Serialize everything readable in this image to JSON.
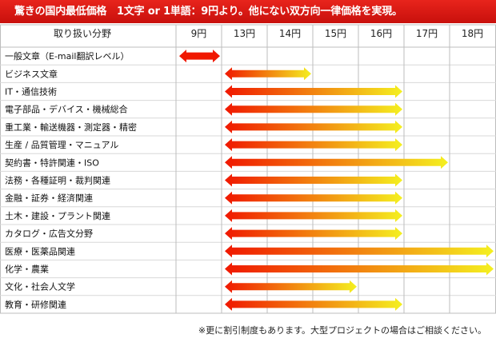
{
  "header": {
    "banner": "驚きの国内最低価格　1文字 or 1単語：9円より。他にない双方向一律価格を実現。"
  },
  "footnote": "※更に割引制度もあります。大型プロジェクトの場合はご相談ください。",
  "colors": {
    "banner_red": "#d8180f",
    "arrow_start": "#f01800",
    "arrow_end": "#f4f020"
  },
  "chart_data": {
    "type": "bar",
    "title": "",
    "column_header": "取り扱い分野",
    "x_ticks": [
      "9円",
      "13円",
      "14円",
      "15円",
      "16円",
      "17円",
      "18円"
    ],
    "categories": [
      "一般文章（E-mail翻訳レベル）",
      "ビジネス文章",
      "IT・通信技術",
      "電子部品・デバイス・機械総合",
      "重工業・輸送機器・測定器・精密",
      "生産 / 品質管理・マニュアル",
      "契約書・特許関連・ISO",
      "法務・各種証明・裁判関連",
      "金融・証券・経済関連",
      "土木・建設・プラント関連",
      "カタログ・広告文分野",
      "医療・医薬品関連",
      "化学・農業",
      "文化・社会人文学",
      "教育・研修関連"
    ],
    "ranges": [
      [
        9,
        9
      ],
      [
        13,
        14
      ],
      [
        13,
        16
      ],
      [
        13,
        16
      ],
      [
        13,
        16
      ],
      [
        13,
        16
      ],
      [
        13,
        17
      ],
      [
        13,
        16
      ],
      [
        13,
        16
      ],
      [
        13,
        16
      ],
      [
        13,
        16
      ],
      [
        13,
        18
      ],
      [
        13,
        18
      ],
      [
        13,
        15
      ],
      [
        13,
        16
      ]
    ],
    "grid": true
  }
}
